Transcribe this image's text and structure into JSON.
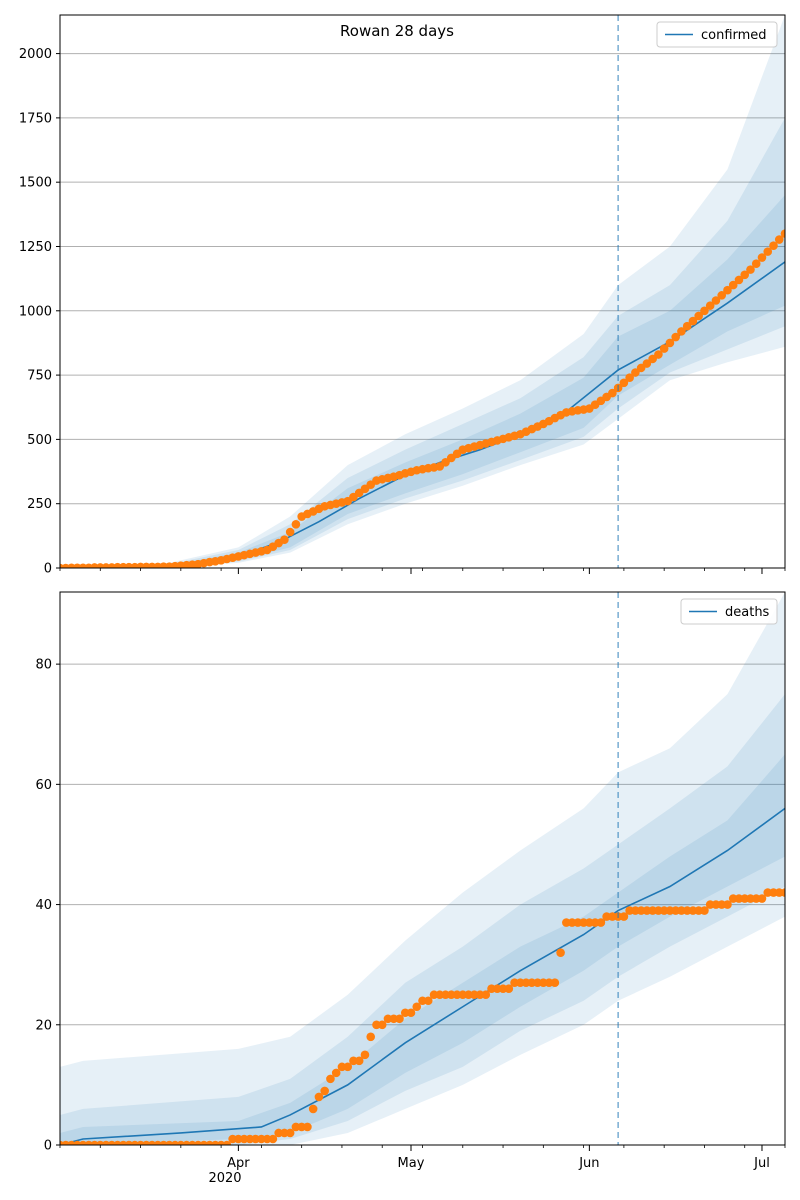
{
  "title": "Rowan 28 days",
  "colors": {
    "line": "#1f77b4",
    "points": "#ff7f0e",
    "band": "#1f77b4",
    "grid": "#b0b0b0",
    "cutoff": "#1f77b4"
  },
  "x_ticks": [
    {
      "label": "Apr",
      "day": 31
    },
    {
      "label": "May",
      "day": 61
    },
    {
      "label": "Jun",
      "day": 92
    },
    {
      "label": "Jul",
      "day": 122
    }
  ],
  "x_year_label": "2020",
  "chart_data": [
    {
      "type": "line",
      "title": "Rowan 28 days",
      "legend": "confirmed",
      "legend_position": "upper right",
      "x_axis": "date",
      "x_range": [
        "2020-03-01",
        "2020-07-05"
      ],
      "forecast_start": "2020-06-06",
      "ylim": [
        0,
        2150
      ],
      "yticks": [
        0,
        250,
        500,
        750,
        1000,
        1250,
        1500,
        1750,
        2000
      ],
      "grid": "y",
      "model_median": {
        "x": [
          "2020-03-01",
          "2020-03-15",
          "2020-03-25",
          "2020-04-01",
          "2020-04-08",
          "2020-04-15",
          "2020-04-22",
          "2020-04-29",
          "2020-05-06",
          "2020-05-13",
          "2020-05-20",
          "2020-05-27",
          "2020-06-06",
          "2020-06-15",
          "2020-06-25",
          "2020-07-05"
        ],
        "y": [
          0,
          2,
          10,
          45,
          100,
          180,
          270,
          350,
          410,
          460,
          520,
          590,
          770,
          880,
          1030,
          1190
        ]
      },
      "bands": [
        {
          "x": [
            "2020-03-01",
            "2020-03-20",
            "2020-04-01",
            "2020-04-10",
            "2020-04-20",
            "2020-04-30",
            "2020-05-10",
            "2020-05-20",
            "2020-05-31",
            "2020-06-06",
            "2020-06-15",
            "2020-06-25",
            "2020-07-05"
          ],
          "lower": [
            0,
            2,
            20,
            60,
            170,
            250,
            320,
            400,
            480,
            580,
            730,
            800,
            860
          ],
          "upper": [
            0,
            20,
            80,
            200,
            400,
            520,
            620,
            730,
            910,
            1100,
            1250,
            1550,
            2150
          ]
        },
        {
          "x": [
            "2020-03-01",
            "2020-03-20",
            "2020-04-01",
            "2020-04-10",
            "2020-04-20",
            "2020-04-30",
            "2020-05-10",
            "2020-05-20",
            "2020-05-31",
            "2020-06-06",
            "2020-06-15",
            "2020-06-25",
            "2020-07-05"
          ],
          "lower": [
            0,
            3,
            25,
            70,
            190,
            270,
            340,
            420,
            510,
            620,
            760,
            850,
            940
          ],
          "upper": [
            0,
            15,
            70,
            170,
            350,
            460,
            560,
            660,
            820,
            980,
            1100,
            1350,
            1750
          ]
        },
        {
          "x": [
            "2020-03-01",
            "2020-03-20",
            "2020-04-01",
            "2020-04-10",
            "2020-04-20",
            "2020-04-30",
            "2020-05-10",
            "2020-05-20",
            "2020-05-31",
            "2020-06-06",
            "2020-06-15",
            "2020-06-25",
            "2020-07-05"
          ],
          "lower": [
            0,
            4,
            30,
            80,
            210,
            290,
            365,
            450,
            545,
            670,
            790,
            920,
            1020
          ],
          "upper": [
            0,
            10,
            60,
            140,
            310,
            410,
            500,
            600,
            740,
            900,
            1000,
            1200,
            1450
          ]
        }
      ],
      "observed": {
        "x": [
          "2020-03-01",
          "2020-03-20",
          "2020-03-25",
          "2020-03-29",
          "2020-04-02",
          "2020-04-06",
          "2020-04-09",
          "2020-04-12",
          "2020-04-13",
          "2020-04-16",
          "2020-04-20",
          "2020-04-25",
          "2020-04-28",
          "2020-05-02",
          "2020-05-06",
          "2020-05-10",
          "2020-05-15",
          "2020-05-20",
          "2020-05-24",
          "2020-05-28",
          "2020-06-01",
          "2020-06-05",
          "2020-06-09",
          "2020-06-13",
          "2020-06-17",
          "2020-06-21",
          "2020-06-25",
          "2020-06-29",
          "2020-07-05"
        ],
        "y": [
          0,
          5,
          15,
          30,
          50,
          70,
          110,
          200,
          210,
          240,
          260,
          340,
          355,
          380,
          395,
          460,
          490,
          520,
          560,
          605,
          620,
          680,
          760,
          830,
          920,
          1000,
          1080,
          1160,
          1300
        ]
      }
    },
    {
      "type": "line",
      "legend": "deaths",
      "legend_position": "upper right",
      "x_axis": "date",
      "x_range": [
        "2020-03-01",
        "2020-07-05"
      ],
      "forecast_start": "2020-06-06",
      "ylim": [
        0,
        92
      ],
      "yticks": [
        0,
        20,
        40,
        60,
        80
      ],
      "grid": "y",
      "model_median": {
        "x": [
          "2020-03-01",
          "2020-03-05",
          "2020-03-22",
          "2020-04-05",
          "2020-04-10",
          "2020-04-20",
          "2020-04-30",
          "2020-05-10",
          "2020-05-20",
          "2020-05-31",
          "2020-06-06",
          "2020-06-15",
          "2020-06-25",
          "2020-07-05"
        ],
        "y": [
          0,
          1,
          2,
          3,
          5,
          10,
          17,
          23,
          29,
          35,
          39,
          43,
          49,
          56
        ]
      },
      "bands": [
        {
          "x": [
            "2020-03-01",
            "2020-03-05",
            "2020-04-01",
            "2020-04-10",
            "2020-04-20",
            "2020-04-30",
            "2020-05-10",
            "2020-05-20",
            "2020-05-31",
            "2020-06-06",
            "2020-06-15",
            "2020-06-25",
            "2020-07-05"
          ],
          "lower": [
            0,
            0,
            0,
            0,
            2,
            6,
            10,
            15,
            20,
            24,
            28,
            33,
            38
          ],
          "upper": [
            13,
            14,
            16,
            18,
            25,
            34,
            42,
            49,
            56,
            62,
            66,
            75,
            92
          ]
        },
        {
          "x": [
            "2020-03-01",
            "2020-03-05",
            "2020-04-01",
            "2020-04-10",
            "2020-04-20",
            "2020-04-30",
            "2020-05-10",
            "2020-05-20",
            "2020-05-31",
            "2020-06-06",
            "2020-06-15",
            "2020-06-25",
            "2020-07-05"
          ],
          "lower": [
            0,
            0,
            0,
            1,
            4,
            9,
            13,
            19,
            24,
            28,
            33,
            38,
            43
          ],
          "upper": [
            5,
            6,
            8,
            11,
            18,
            27,
            33,
            40,
            46,
            50,
            56,
            63,
            75
          ]
        },
        {
          "x": [
            "2020-03-01",
            "2020-03-05",
            "2020-04-01",
            "2020-04-10",
            "2020-04-20",
            "2020-04-30",
            "2020-05-10",
            "2020-05-20",
            "2020-05-31",
            "2020-06-06",
            "2020-06-15",
            "2020-06-25",
            "2020-07-05"
          ],
          "lower": [
            0,
            0,
            1,
            2,
            6,
            12,
            17,
            23,
            29,
            33,
            38,
            43,
            48
          ],
          "upper": [
            2,
            3,
            4,
            7,
            13,
            21,
            27,
            33,
            38,
            42,
            48,
            54,
            65
          ]
        }
      ],
      "observed": {
        "x": [
          "2020-03-01",
          "2020-03-25",
          "2020-04-06",
          "2020-04-09",
          "2020-04-13",
          "2020-04-15",
          "2020-04-18",
          "2020-04-23",
          "2020-04-25",
          "2020-04-28",
          "2020-05-01",
          "2020-05-03",
          "2020-05-06",
          "2020-05-12",
          "2020-05-17",
          "2020-05-21",
          "2020-05-26",
          "2020-05-28",
          "2020-06-02",
          "2020-06-06",
          "2020-06-10",
          "2020-06-20",
          "2020-06-23",
          "2020-06-28",
          "2020-07-05"
        ],
        "y": [
          0,
          0,
          1,
          2,
          3,
          8,
          12,
          15,
          20,
          21,
          22,
          24,
          25,
          25,
          26,
          27,
          27,
          37,
          37,
          38,
          39,
          39,
          40,
          41,
          42
        ]
      }
    }
  ]
}
